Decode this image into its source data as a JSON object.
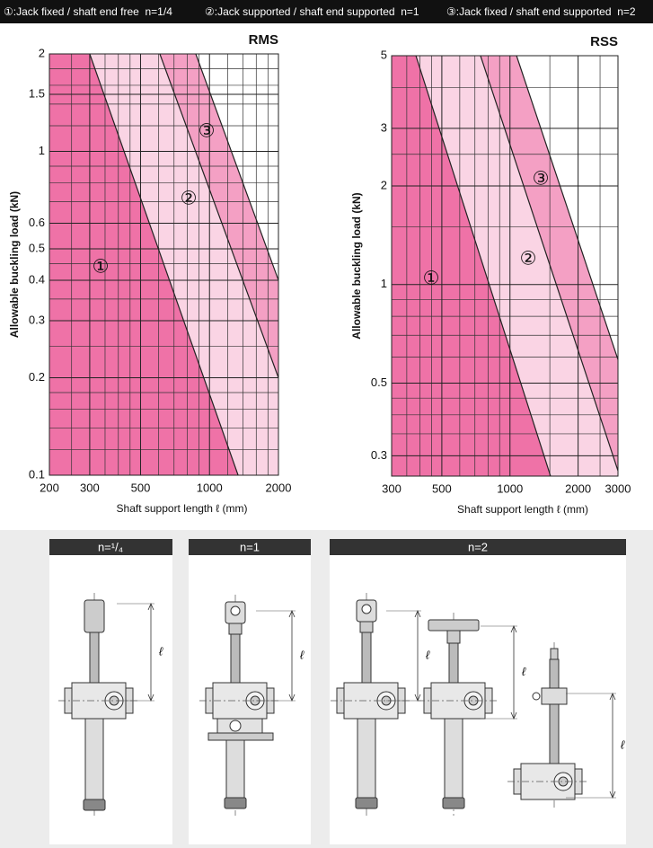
{
  "header": {
    "items": [
      "①:Jack fixed / shaft end free  n=1/4",
      "②:Jack supported / shaft end supported  n=1",
      "③:Jack fixed / shaft end supported  n=2"
    ]
  },
  "chart_data": [
    {
      "type": "area",
      "title": "RMS",
      "xlabel": "Shaft support length ℓ (mm)",
      "ylabel": "Allowable buckling load (kN)",
      "log_x": true,
      "log_y": true,
      "grid": true,
      "xlim": [
        200,
        2000
      ],
      "ylim": [
        0.1,
        2
      ],
      "xticks": [
        200,
        300,
        500,
        1000,
        2000
      ],
      "yticks": [
        0.1,
        0.2,
        0.3,
        0.4,
        0.5,
        0.6,
        1,
        1.5,
        2
      ],
      "minor_xticks": [
        250,
        350,
        400,
        450,
        600,
        700,
        800,
        900,
        1200,
        1400,
        1600,
        1800
      ],
      "minor_yticks": [
        0.12,
        0.14,
        0.16,
        0.18,
        0.25,
        0.35,
        0.45,
        0.7,
        0.8,
        0.9,
        1.2,
        1.4,
        1.6,
        1.8
      ],
      "series": [
        {
          "name": "①",
          "color": "#ef72a7",
          "x": [
            300,
            1333
          ],
          "values": [
            2,
            0.1
          ]
        },
        {
          "name": "②",
          "color": "#fad4e4",
          "x": [
            607,
            2000
          ],
          "values": [
            2,
            0.2
          ]
        },
        {
          "name": "③",
          "color": "#f4a0c4",
          "x": [
            871,
            2000
          ],
          "values": [
            2,
            0.4
          ]
        }
      ]
    },
    {
      "type": "area",
      "title": "RSS",
      "xlabel": "Shaft support length ℓ (mm)",
      "ylabel": "Allowable buckling load (kN)",
      "log_x": true,
      "log_y": true,
      "grid": true,
      "xlim": [
        300,
        3000
      ],
      "ylim": [
        0.26,
        5
      ],
      "xticks": [
        300,
        500,
        1000,
        2000,
        3000
      ],
      "yticks": [
        0.3,
        0.5,
        1,
        2,
        3,
        5
      ],
      "minor_xticks": [
        350,
        400,
        450,
        600,
        700,
        800,
        900,
        1500,
        2500
      ],
      "minor_yticks": [
        0.35,
        0.4,
        0.45,
        0.6,
        0.7,
        0.8,
        0.9,
        1.5,
        2.5,
        4
      ],
      "series": [
        {
          "name": "①",
          "color": "#ef72a7",
          "x": [
            384,
            1511
          ],
          "values": [
            5,
            0.26
          ]
        },
        {
          "name": "②",
          "color": "#fad4e4",
          "x": [
            741,
            3000
          ],
          "values": [
            5,
            0.27
          ]
        },
        {
          "name": "③",
          "color": "#f4a0c4",
          "x": [
            1069,
            3000
          ],
          "values": [
            5,
            0.59
          ]
        }
      ]
    }
  ],
  "diagrams": {
    "panels": [
      {
        "title": "n=¹/₄",
        "dimension_labels": [
          "ℓ"
        ]
      },
      {
        "title": "n=1",
        "dimension_labels": [
          "ℓ"
        ]
      },
      {
        "title": "n=2",
        "dimension_labels": [
          "ℓ",
          "ℓ",
          "ℓ"
        ]
      }
    ]
  }
}
